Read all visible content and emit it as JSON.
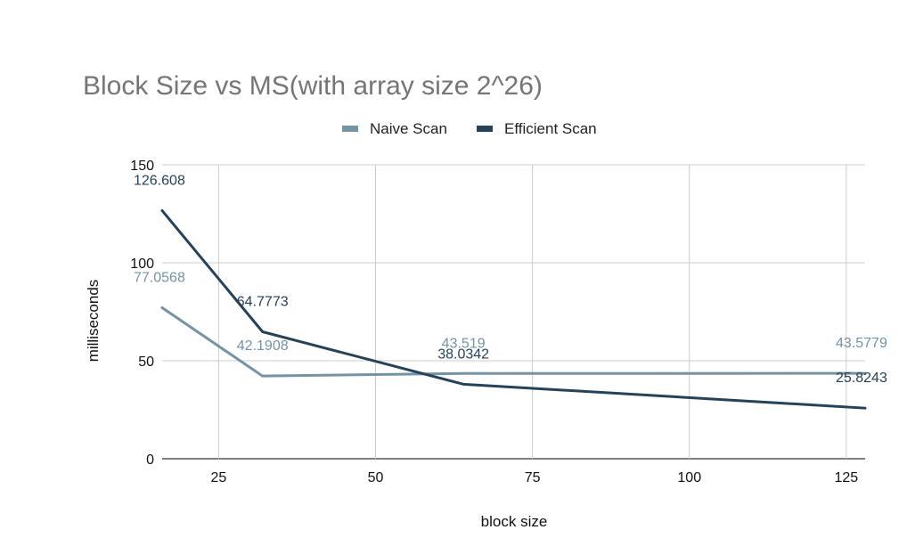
{
  "chart_data": {
    "type": "line",
    "title": "Block Size vs MS(with array size 2^26)",
    "xlabel": "block size",
    "ylabel": "milliseconds",
    "xlim": [
      16,
      128
    ],
    "ylim": [
      0,
      150
    ],
    "x_ticks": [
      "25",
      "50",
      "75",
      "100",
      "125"
    ],
    "x_tick_values": [
      25,
      50,
      75,
      100,
      125
    ],
    "y_ticks": [
      "0",
      "50",
      "100",
      "150"
    ],
    "y_tick_values": [
      0,
      50,
      100,
      150
    ],
    "grid": true,
    "legend_position": "top",
    "x": [
      16,
      32,
      64,
      128
    ],
    "series": [
      {
        "name": "Naive Scan",
        "color": "#7393a7",
        "values": [
          77.0568,
          42.1908,
          43.519,
          43.5779
        ],
        "labels": [
          "77.0568",
          "42.1908",
          "43.519",
          "43.5779"
        ]
      },
      {
        "name": "Efficient Scan",
        "color": "#24425a",
        "values": [
          126.608,
          64.7773,
          38.0342,
          25.8243
        ],
        "labels": [
          "126.608",
          "64.7773",
          "38.0342",
          "25.8243"
        ]
      }
    ]
  }
}
